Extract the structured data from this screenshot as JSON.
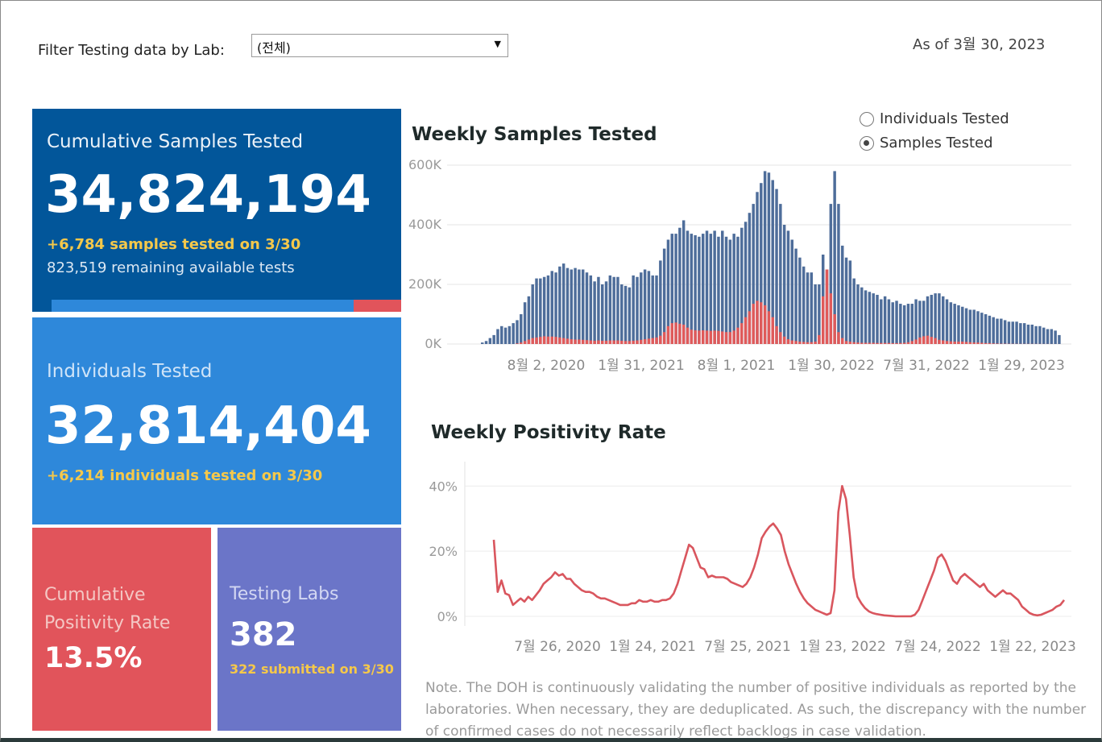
{
  "filter": {
    "label": "Filter Testing data by Lab:",
    "selected": "(전체)"
  },
  "as_of": "As of 3월 30, 2023",
  "cumulative_samples": {
    "title": "Cumulative Samples Tested",
    "value": "34,824,194",
    "daily": "+6,784 samples tested on 3/30",
    "remaining": "823,519 remaining available tests",
    "progress_fraction": 0.865,
    "colors": {
      "bg": "#02569a",
      "fill": "#2e88da",
      "rest": "#e1545b"
    }
  },
  "individuals": {
    "title": "Individuals Tested",
    "value": "32,814,404",
    "daily": "+6,214  individuals  tested on 3/30"
  },
  "positivity": {
    "title_line1": "Cumulative",
    "title_line2": "Positivity Rate",
    "value": "13.5%"
  },
  "labs": {
    "title": "Testing Labs",
    "value": "382",
    "submitted": "322 submitted on 3/30"
  },
  "toggle": {
    "options": [
      {
        "label": "Individuals Tested",
        "selected": false
      },
      {
        "label": "Samples Tested",
        "selected": true
      }
    ]
  },
  "note": "Note. The DOH is continuously validating the number of positive individuals as reported by the laboratories. When necessary, they are deduplicated. As such, the discrepancy with the number of confirmed cases do not necessarily reflect backlogs in case validation.",
  "chart_data": [
    {
      "type": "bar",
      "title": "Weekly Samples Tested",
      "y_ticks": [
        "600K",
        "400K",
        "200K",
        "0K"
      ],
      "ylim": [
        0,
        600000
      ],
      "x_tick_labels": [
        "8월 2, 2020",
        "1월 31, 2021",
        "8월 1, 2021",
        "1월 30, 2022",
        "7월 31, 2022",
        "1월 29, 2023"
      ],
      "grid": true,
      "series": [
        {
          "color": "#4e6d9a",
          "values": [
            5000,
            10000,
            20000,
            30000,
            50000,
            60000,
            55000,
            60000,
            70000,
            80000,
            100000,
            140000,
            160000,
            200000,
            220000,
            220000,
            225000,
            230000,
            245000,
            240000,
            260000,
            270000,
            255000,
            250000,
            255000,
            250000,
            250000,
            240000,
            230000,
            210000,
            225000,
            200000,
            210000,
            230000,
            225000,
            225000,
            200000,
            195000,
            190000,
            230000,
            225000,
            240000,
            250000,
            245000,
            230000,
            230000,
            280000,
            320000,
            350000,
            370000,
            370000,
            390000,
            415000,
            380000,
            370000,
            365000,
            360000,
            370000,
            380000,
            370000,
            380000,
            360000,
            380000,
            360000,
            350000,
            370000,
            360000,
            390000,
            410000,
            440000,
            470000,
            510000,
            540000,
            580000,
            575000,
            550000,
            520000,
            470000,
            400000,
            380000,
            350000,
            320000,
            290000,
            260000,
            240000,
            240000,
            200000,
            200000,
            300000,
            250000,
            470000,
            580000,
            470000,
            330000,
            290000,
            280000,
            220000,
            200000,
            190000,
            180000,
            175000,
            170000,
            165000,
            150000,
            160000,
            150000,
            140000,
            145000,
            135000,
            130000,
            135000,
            135000,
            150000,
            145000,
            145000,
            160000,
            165000,
            170000,
            170000,
            160000,
            150000,
            140000,
            135000,
            130000,
            125000,
            120000,
            115000,
            115000,
            110000,
            105000,
            100000,
            95000,
            90000,
            85000,
            85000,
            80000,
            75000,
            75000,
            75000,
            70000,
            70000,
            65000,
            65000,
            60000,
            60000,
            55000,
            50000,
            50000,
            45000,
            30000
          ]
        },
        {
          "color": "#e05a5a",
          "values": [
            0,
            0,
            0,
            0,
            0,
            0,
            0,
            0,
            0,
            2000,
            5000,
            10000,
            15000,
            20000,
            22000,
            24000,
            26000,
            25000,
            25000,
            24000,
            22000,
            20000,
            18000,
            16000,
            15000,
            15000,
            14000,
            13000,
            12000,
            11000,
            12000,
            11000,
            11000,
            12000,
            12000,
            12000,
            11000,
            10000,
            10000,
            11000,
            12000,
            14000,
            16000,
            18000,
            20000,
            22000,
            28000,
            40000,
            60000,
            70000,
            72000,
            68000,
            65000,
            55000,
            48000,
            46000,
            45000,
            46000,
            45000,
            44000,
            45000,
            44000,
            42000,
            40000,
            40000,
            45000,
            55000,
            70000,
            90000,
            110000,
            135000,
            145000,
            140000,
            130000,
            110000,
            90000,
            60000,
            40000,
            25000,
            16000,
            12000,
            10000,
            8000,
            7000,
            6000,
            6000,
            8000,
            30000,
            160000,
            250000,
            170000,
            100000,
            40000,
            20000,
            10000,
            8000,
            6000,
            5000,
            4000,
            4000,
            4000,
            4000,
            3500,
            3500,
            3500,
            3500,
            3000,
            3000,
            3500,
            4000,
            6000,
            10000,
            15000,
            22000,
            26000,
            28000,
            24000,
            20000,
            14000,
            12000,
            10000,
            9000,
            8000,
            8000,
            8000,
            7000,
            6000,
            5000,
            5000,
            4000,
            3000,
            3000,
            2000,
            1500,
            1000,
            1000,
            800,
            700,
            600,
            500,
            500,
            500,
            500,
            400,
            400,
            300,
            300,
            200,
            100,
            100,
            100,
            100,
            100
          ]
        }
      ]
    },
    {
      "type": "line",
      "title": "Weekly Positivity Rate",
      "y_ticks": [
        "40%",
        "20%",
        "0%"
      ],
      "ylim": [
        0,
        47
      ],
      "x_tick_labels": [
        "7월 26, 2020",
        "1월 24, 2021",
        "7월 25, 2021",
        "1월 23, 2022",
        "7월 24, 2022",
        "1월 22, 2023"
      ],
      "grid": true,
      "series": [
        {
          "color": "#d9565e",
          "values": [
            23.5,
            7.5,
            11,
            7,
            6.5,
            3.5,
            4.5,
            5.5,
            4.5,
            6,
            5,
            6.5,
            8,
            10,
            11,
            12,
            13.5,
            12.5,
            13,
            11.5,
            11.5,
            10,
            9,
            8,
            7.5,
            7.5,
            7,
            6,
            5.5,
            5.5,
            5,
            4.5,
            4,
            3.5,
            3.5,
            3.5,
            4,
            4,
            5,
            4.5,
            4.5,
            5,
            4.5,
            4.5,
            5,
            5,
            5.5,
            7,
            10,
            14,
            18,
            22,
            21,
            18,
            15,
            14.5,
            12,
            12.5,
            12,
            12,
            12,
            11.5,
            10.5,
            10,
            9.5,
            9,
            10,
            12,
            15,
            19,
            24,
            26,
            27.5,
            28.5,
            27,
            25,
            20,
            16,
            13,
            10,
            7.5,
            5.5,
            4,
            3,
            2,
            1.5,
            1,
            0.5,
            1,
            8,
            32,
            40,
            36,
            25,
            12,
            6,
            4,
            2.5,
            1.5,
            1,
            0.7,
            0.5,
            0.3,
            0.2,
            0.1,
            0,
            0,
            0,
            0,
            0,
            0.5,
            2,
            5,
            8,
            11,
            14,
            18,
            19,
            17,
            14,
            11,
            10,
            12,
            13,
            12,
            11,
            10,
            9,
            10,
            8,
            7,
            6,
            7,
            8,
            7,
            7,
            6,
            5,
            3,
            2,
            1,
            0.5,
            0.3,
            0.5,
            1,
            1.5,
            2,
            3,
            3.5,
            5
          ]
        }
      ]
    }
  ]
}
